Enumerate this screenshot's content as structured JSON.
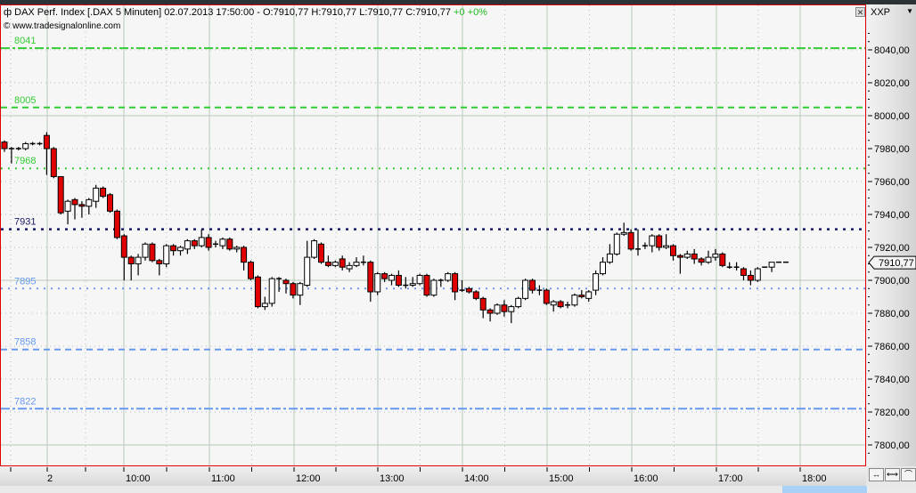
{
  "header": {
    "title": "DAX Perf. Index [.DAX  5 Minuten] 02.07.2013 17:50:00 - O:7910,77 H:7910,77 L:7910,77 C:7910,77",
    "change_abs": "+0",
    "change_pct": "+0%",
    "copyright": "© www.tradesignalonline.com",
    "close_icon": "close-icon"
  },
  "axis": {
    "exchange": "XXP",
    "last_price": "7910,77",
    "nav_icons": [
      "scroll-icon",
      "zoom-horizontal-icon",
      "chart-style-icon"
    ]
  },
  "chart_data": {
    "type": "candlestick",
    "ylim": [
      7790,
      8060
    ],
    "y_ticks": [
      8040,
      8020,
      8000,
      7980,
      7960,
      7940,
      7920,
      7900,
      7880,
      7860,
      7840,
      7820,
      7800
    ],
    "y_tick_labels": [
      "8040,00",
      "8020,00",
      "8000,00",
      "7980,00",
      "7960,00",
      "7940,00",
      "7920,00",
      "7900,00",
      "7880,00",
      "7860,00",
      "7840,00",
      "7820,00",
      "7800,00"
    ],
    "x_labels": [
      "2",
      "10:00",
      "11:00",
      "12:00",
      "13:00",
      "14:00",
      "15:00",
      "16:00",
      "17:00",
      "18:00"
    ],
    "grid": true,
    "colors": {
      "up": "#ffffff",
      "down": "#e00000",
      "wick": "#000000"
    },
    "levels": [
      {
        "label": "8041",
        "value": 8041,
        "color": "#33cc33",
        "style": "dashdot"
      },
      {
        "label": "8005",
        "value": 8005,
        "color": "#33cc33",
        "style": "dashed"
      },
      {
        "label": "7968",
        "value": 7968,
        "color": "#33cc33",
        "style": "dotted"
      },
      {
        "label": "7931",
        "value": 7931,
        "color": "#1a1a66",
        "style": "dotted-bold"
      },
      {
        "label": "7895",
        "value": 7895,
        "color": "#6699ee",
        "style": "dotted"
      },
      {
        "label": "7858",
        "value": 7858,
        "color": "#6699ee",
        "style": "dashed"
      },
      {
        "label": "7822",
        "value": 7822,
        "color": "#6699ee",
        "style": "dashdot"
      }
    ],
    "candles_ohlc": [
      [
        7984,
        7985,
        7978,
        7980
      ],
      [
        7980,
        7981,
        7971,
        7980
      ],
      [
        7980,
        7981,
        7979,
        7980
      ],
      [
        7980,
        7984,
        7979,
        7983
      ],
      [
        7983,
        7984,
        7982,
        7983
      ],
      [
        7983,
        7984,
        7982,
        7983
      ],
      [
        7988,
        7990,
        7964,
        7980
      ],
      [
        7980,
        7981,
        7962,
        7963
      ],
      [
        7963,
        7963,
        7940,
        7941
      ],
      [
        7942,
        7949,
        7934,
        7948
      ],
      [
        7949,
        7950,
        7937,
        7946
      ],
      [
        7946,
        7948,
        7938,
        7945
      ],
      [
        7945,
        7950,
        7940,
        7949
      ],
      [
        7948,
        7958,
        7944,
        7956
      ],
      [
        7956,
        7957,
        7950,
        7951
      ],
      [
        7952,
        7953,
        7941,
        7942
      ],
      [
        7942,
        7943,
        7925,
        7926
      ],
      [
        7927,
        7928,
        7900,
        7914
      ],
      [
        7914,
        7915,
        7900,
        7910
      ],
      [
        7910,
        7916,
        7903,
        7914
      ],
      [
        7914,
        7923,
        7912,
        7922
      ],
      [
        7922,
        7923,
        7911,
        7912
      ],
      [
        7912,
        7913,
        7903,
        7910
      ],
      [
        7910,
        7922,
        7908,
        7921
      ],
      [
        7921,
        7922,
        7915,
        7918
      ],
      [
        7918,
        7921,
        7915,
        7920
      ],
      [
        7919,
        7925,
        7916,
        7924
      ],
      [
        7924,
        7925,
        7919,
        7921
      ],
      [
        7921,
        7931,
        7920,
        7926
      ],
      [
        7926,
        7928,
        7918,
        7920
      ],
      [
        7922,
        7924,
        7920,
        7922
      ],
      [
        7921,
        7926,
        7919,
        7925
      ],
      [
        7925,
        7926,
        7918,
        7919
      ],
      [
        7919,
        7921,
        7917,
        7920
      ],
      [
        7920,
        7921,
        7906,
        7911
      ],
      [
        7911,
        7912,
        7900,
        7901
      ],
      [
        7902,
        7903,
        7883,
        7884
      ],
      [
        7884,
        7890,
        7882,
        7886
      ],
      [
        7886,
        7902,
        7884,
        7901
      ],
      [
        7901,
        7902,
        7893,
        7901
      ],
      [
        7900,
        7901,
        7892,
        7898
      ],
      [
        7898,
        7899,
        7889,
        7891
      ],
      [
        7891,
        7899,
        7885,
        7898
      ],
      [
        7897,
        7924,
        7896,
        7914
      ],
      [
        7914,
        7925,
        7913,
        7924
      ],
      [
        7922,
        7923,
        7910,
        7911
      ],
      [
        7911,
        7915,
        7908,
        7909
      ],
      [
        7909,
        7912,
        7908,
        7911
      ],
      [
        7913,
        7915,
        7906,
        7908
      ],
      [
        7907,
        7911,
        7905,
        7909
      ],
      [
        7909,
        7914,
        7908,
        7911
      ],
      [
        7911,
        7915,
        7909,
        7911
      ],
      [
        7911,
        7912,
        7887,
        7893
      ],
      [
        7893,
        7905,
        7891,
        7904
      ],
      [
        7904,
        7905,
        7899,
        7901
      ],
      [
        7900,
        7904,
        7897,
        7903
      ],
      [
        7903,
        7906,
        7896,
        7897
      ],
      [
        7897,
        7902,
        7895,
        7897
      ],
      [
        7897,
        7902,
        7896,
        7898
      ],
      [
        7898,
        7904,
        7897,
        7903
      ],
      [
        7903,
        7904,
        7890,
        7891
      ],
      [
        7891,
        7901,
        7890,
        7900
      ],
      [
        7900,
        7901,
        7896,
        7900
      ],
      [
        7900,
        7905,
        7899,
        7904
      ],
      [
        7904,
        7905,
        7888,
        7893
      ],
      [
        7894,
        7900,
        7893,
        7894
      ],
      [
        7895,
        7896,
        7892,
        7893
      ],
      [
        7893,
        7894,
        7888,
        7889
      ],
      [
        7889,
        7890,
        7877,
        7882
      ],
      [
        7882,
        7883,
        7875,
        7880
      ],
      [
        7880,
        7886,
        7879,
        7885
      ],
      [
        7885,
        7888,
        7878,
        7881
      ],
      [
        7881,
        7885,
        7874,
        7884
      ],
      [
        7884,
        7890,
        7883,
        7889
      ],
      [
        7889,
        7901,
        7888,
        7900
      ],
      [
        7900,
        7901,
        7892,
        7894
      ],
      [
        7894,
        7897,
        7891,
        7894
      ],
      [
        7894,
        7895,
        7885,
        7886
      ],
      [
        7885,
        7888,
        7881,
        7887
      ],
      [
        7887,
        7888,
        7883,
        7884
      ],
      [
        7885,
        7887,
        7883,
        7885
      ],
      [
        7885,
        7892,
        7884,
        7891
      ],
      [
        7891,
        7894,
        7889,
        7890
      ],
      [
        7889,
        7894,
        7887,
        7893
      ],
      [
        7894,
        7906,
        7891,
        7904
      ],
      [
        7904,
        7914,
        7903,
        7911
      ],
      [
        7911,
        7922,
        7910,
        7916
      ],
      [
        7916,
        7929,
        7915,
        7928
      ],
      [
        7928,
        7935,
        7927,
        7929
      ],
      [
        7929,
        7931,
        7918,
        7919
      ],
      [
        7919,
        7931,
        7915,
        7919
      ],
      [
        7921,
        7923,
        7919,
        7921
      ],
      [
        7921,
        7928,
        7917,
        7927
      ],
      [
        7927,
        7928,
        7918,
        7920
      ],
      [
        7920,
        7928,
        7919,
        7921
      ],
      [
        7921,
        7922,
        7912,
        7915
      ],
      [
        7915,
        7916,
        7904,
        7914
      ],
      [
        7914,
        7918,
        7913,
        7916
      ],
      [
        7916,
        7919,
        7910,
        7913
      ],
      [
        7913,
        7914,
        7909,
        7911
      ],
      [
        7911,
        7918,
        7910,
        7914
      ],
      [
        7914,
        7919,
        7912,
        7916
      ],
      [
        7916,
        7917,
        7908,
        7909
      ],
      [
        7908,
        7911,
        7907,
        7908
      ],
      [
        7908,
        7911,
        7906,
        7908
      ],
      [
        7907,
        7908,
        7900,
        7903
      ],
      [
        7903,
        7906,
        7897,
        7900
      ],
      [
        7900,
        7908,
        7899,
        7907
      ],
      [
        7908,
        7908,
        7908,
        7908
      ],
      [
        7908,
        7911,
        7905,
        7911
      ],
      [
        7911,
        7911,
        7911,
        7911
      ],
      [
        7911,
        7911,
        7911,
        7911
      ]
    ]
  }
}
